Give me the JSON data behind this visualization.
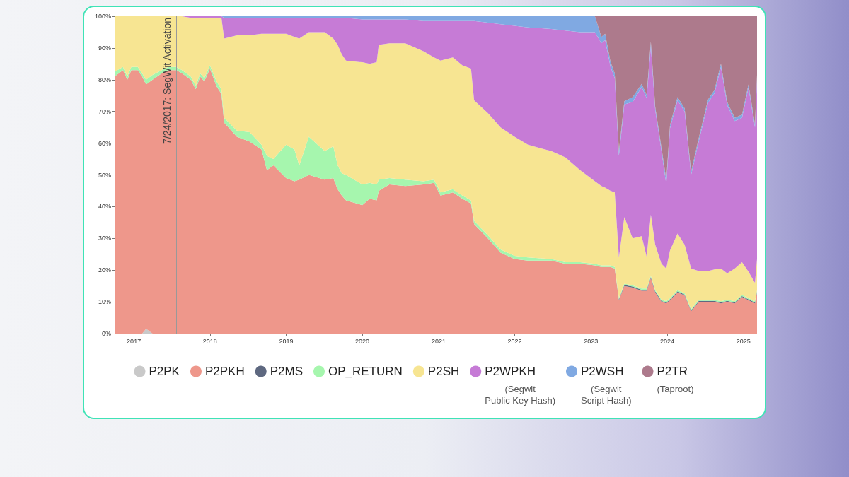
{
  "chart_data": {
    "type": "area",
    "stacked": true,
    "legend": "bottom",
    "marker": "none",
    "x": [
      "2016-10-01",
      "2016-11-10",
      "2016-12-01",
      "2016-12-20",
      "2017-01-20",
      "2017-02-10",
      "2017-03-01",
      "2017-04-01",
      "2017-05-15",
      "2017-06-15",
      "2017-07-24",
      "2017-08-20",
      "2017-10-01",
      "2017-10-25",
      "2017-11-15",
      "2017-12-05",
      "2018-01-01",
      "2018-02-01",
      "2018-02-25",
      "2018-03-10",
      "2018-05-10",
      "2018-07-10",
      "2018-09-05",
      "2018-10-01",
      "2018-11-01",
      "2019-01-01",
      "2019-02-10",
      "2019-03-05",
      "2019-04-20",
      "2019-07-05",
      "2019-08-15",
      "2019-09-05",
      "2019-09-25",
      "2019-10-15",
      "2020-01-01",
      "2020-02-05",
      "2020-03-10",
      "2020-03-20",
      "2020-05-10",
      "2020-07-25",
      "2020-10-20",
      "2020-12-10",
      "2021-01-10",
      "2021-03-10",
      "2021-04-25",
      "2021-06-05",
      "2021-06-20",
      "2021-08-25",
      "2021-10-25",
      "2021-12-31",
      "2022-03-05",
      "2022-06-25",
      "2022-09-01",
      "2022-11-10",
      "2023-01-20",
      "2023-02-20",
      "2023-03-10",
      "2023-04-05",
      "2023-04-25",
      "2023-05-15",
      "2023-06-10",
      "2023-07-20",
      "2023-09-01",
      "2023-09-25",
      "2023-10-15",
      "2023-11-05",
      "2023-12-05",
      "2023-12-28",
      "2024-01-15",
      "2024-02-20",
      "2024-03-25",
      "2024-04-25",
      "2024-06-01",
      "2024-07-15",
      "2024-08-15",
      "2024-09-15",
      "2024-10-15",
      "2024-11-20",
      "2024-12-25",
      "2025-01-25",
      "2025-02-25",
      "2025-03-07"
    ],
    "xlim": [
      "2016-10-01",
      "2025-03-07"
    ],
    "xticks": [
      {
        "value": "2017",
        "label": "2017"
      },
      {
        "value": "2018",
        "label": "2018"
      },
      {
        "value": "2019",
        "label": "2019"
      },
      {
        "value": "2020",
        "label": "2020"
      },
      {
        "value": "2021",
        "label": "2021"
      },
      {
        "value": "2022",
        "label": "2022"
      },
      {
        "value": "2023",
        "label": "2023"
      },
      {
        "value": "2024",
        "label": "2024"
      },
      {
        "value": "2025",
        "label": "2025"
      }
    ],
    "ylim": [
      0,
      100
    ],
    "yticks": [
      {
        "value": 0,
        "label": "0%"
      },
      {
        "value": 10,
        "label": "10%"
      },
      {
        "value": 20,
        "label": "20%"
      },
      {
        "value": 30,
        "label": "30%"
      },
      {
        "value": 40,
        "label": "40%"
      },
      {
        "value": 50,
        "label": "50%"
      },
      {
        "value": 60,
        "label": "60%"
      },
      {
        "value": 70,
        "label": "70%"
      },
      {
        "value": 80,
        "label": "80%"
      },
      {
        "value": 90,
        "label": "90%"
      },
      {
        "value": 100,
        "label": "100%"
      }
    ],
    "ref_lines": [
      {
        "axis": "x",
        "value": "2017-07-24",
        "label": "7/24/2017: SegWit Activation",
        "color": "#999999"
      }
    ],
    "series": [
      {
        "name": "P2PK",
        "color": "#c9c9c9",
        "values": [
          0,
          0,
          0,
          0,
          0,
          0,
          1.5,
          0,
          0,
          0,
          0,
          0,
          0,
          0,
          0,
          0,
          0,
          0,
          0,
          0,
          0,
          0,
          0,
          0,
          0,
          0,
          0,
          0,
          0,
          0,
          0,
          0,
          0,
          0,
          0,
          0,
          0,
          0,
          0,
          0,
          0,
          0,
          0,
          0,
          0,
          0,
          0,
          0,
          0,
          0,
          0,
          0,
          0,
          0,
          0,
          0,
          0,
          0,
          0,
          0,
          0,
          0,
          0,
          0,
          0,
          0,
          0,
          0,
          0,
          0,
          0,
          0,
          0,
          0,
          0,
          0,
          0,
          0,
          0,
          0,
          0,
          0
        ]
      },
      {
        "name": "P2PKH",
        "color": "#ee978b",
        "values": [
          81,
          83,
          80,
          83,
          83,
          81,
          77,
          80,
          82,
          83,
          83,
          82,
          80,
          77,
          81,
          79.5,
          83.5,
          78,
          75.5,
          66.5,
          62,
          60.5,
          58,
          51.5,
          53,
          49,
          48,
          48.5,
          50,
          48.5,
          49,
          45.5,
          43.5,
          42,
          40.5,
          42.5,
          42,
          45,
          47,
          46.5,
          47,
          47.5,
          43.5,
          44.5,
          42.5,
          41,
          34.5,
          30,
          25.5,
          23.5,
          23,
          23,
          22,
          22,
          21.5,
          21,
          21,
          21,
          20.5,
          10.5,
          15,
          14.5,
          13.5,
          13.5,
          17.5,
          13,
          10,
          9.5,
          10.5,
          13,
          12,
          7,
          10,
          10,
          10,
          9.5,
          10,
          9.5,
          11.5,
          10.5,
          9.5,
          13
        ]
      },
      {
        "name": "P2MS",
        "color": "#5e6880",
        "values": [
          0,
          0,
          0,
          0,
          0,
          0,
          0,
          0,
          0,
          0,
          0,
          0,
          0,
          0,
          0,
          0,
          0,
          0,
          0,
          0,
          0,
          0,
          0,
          0,
          0,
          0,
          0,
          0,
          0,
          0,
          0,
          0,
          0,
          0,
          0,
          0,
          0,
          0,
          0,
          0,
          0,
          0,
          0,
          0,
          0,
          0,
          0,
          0,
          0,
          0,
          0,
          0,
          0,
          0,
          0,
          0,
          0,
          0,
          0,
          0.3,
          0.3,
          0.3,
          0.3,
          0.3,
          0.3,
          0.3,
          0.3,
          0.3,
          0.3,
          0.3,
          0.3,
          0.3,
          0.3,
          0.3,
          0.3,
          0.3,
          0.3,
          0.3,
          0.3,
          0.3,
          0.3,
          0.3
        ]
      },
      {
        "name": "OP_RETURN",
        "color": "#a6f6ae",
        "values": [
          1.5,
          1,
          1,
          1,
          1,
          1,
          1.5,
          1.5,
          1,
          1,
          1,
          1,
          1,
          1,
          1,
          1,
          1,
          1.5,
          1.5,
          1.5,
          2,
          3,
          1.5,
          4.5,
          2,
          10.5,
          10,
          4.5,
          12,
          9,
          10,
          7.5,
          7,
          8,
          6.5,
          5,
          5,
          3.5,
          2,
          2,
          1,
          1,
          1,
          1,
          1,
          1,
          1,
          1,
          1,
          1,
          1,
          0.5,
          0.5,
          0.5,
          0.5,
          0.5,
          0.5,
          0.5,
          0.5,
          0.4,
          0.4,
          0.4,
          0.4,
          0.4,
          0.4,
          0.4,
          0.4,
          0.4,
          0.4,
          0.4,
          0.4,
          0.4,
          0.4,
          0.4,
          0.4,
          0.4,
          0.4,
          0.4,
          0.4,
          0.4,
          0.4,
          0.4
        ]
      },
      {
        "name": "P2SH",
        "color": "#f7e592",
        "values": [
          17.5,
          16,
          19,
          16,
          16,
          18,
          20,
          18.5,
          17,
          16,
          16,
          17,
          18.5,
          21.5,
          17.5,
          19,
          15,
          20,
          22.5,
          25,
          30,
          30.5,
          35,
          38.5,
          39.5,
          35,
          35.5,
          40,
          33,
          37.5,
          34,
          38,
          37.5,
          36,
          38.5,
          37.5,
          38.5,
          42.5,
          42.5,
          43,
          41,
          38.5,
          41.5,
          41.5,
          41,
          41.5,
          38,
          38.5,
          38.5,
          37.5,
          35.5,
          34,
          33,
          29,
          26,
          25,
          24.5,
          23.5,
          23.5,
          12.8,
          21,
          14.8,
          16.5,
          10,
          19.3,
          14.3,
          11.3,
          10.3,
          15,
          17.8,
          15.3,
          12.8,
          9,
          9,
          9.5,
          10.3,
          8.3,
          10.3,
          10.3,
          8.3,
          5.8,
          9.8
        ]
      },
      {
        "name": "P2WPKH\n(Segwit\nPublic Key Hash)",
        "color": "#c67bd6",
        "values": [
          0,
          0,
          0,
          0,
          0,
          0,
          0,
          0,
          0,
          0,
          0,
          0,
          0.5,
          0.5,
          0.5,
          0.5,
          0.5,
          0.5,
          0.5,
          6.5,
          5.5,
          5.5,
          5,
          5,
          5,
          5,
          6,
          6.5,
          4.5,
          4.5,
          6.5,
          8.5,
          11.5,
          13.5,
          13.5,
          14,
          13.5,
          8,
          7.5,
          7.5,
          9.5,
          11.5,
          12.5,
          11.5,
          14,
          15,
          25,
          28.5,
          32.5,
          35,
          37,
          38.5,
          40,
          43.5,
          47,
          45,
          46.5,
          39,
          36,
          32,
          35.5,
          43,
          47,
          50,
          53,
          42.5,
          35.5,
          26.5,
          38.5,
          42,
          42,
          29.5,
          41,
          53,
          55.5,
          63.5,
          53,
          46.5,
          45.5,
          58,
          49,
          57
        ]
      },
      {
        "name": "P2WSH\n(Segwit\nScript Hash)",
        "color": "#80a9e2",
        "values": [
          0,
          0,
          0,
          0,
          0,
          0,
          0,
          0,
          0,
          0,
          0,
          0,
          0,
          0,
          0,
          0,
          0,
          0,
          0,
          0.5,
          0.5,
          0.5,
          0.5,
          0.5,
          0.5,
          0.5,
          0.5,
          0.5,
          0.5,
          0.5,
          0.5,
          0.5,
          0.5,
          0.5,
          1,
          1,
          1,
          1,
          1,
          1,
          1.5,
          1.5,
          1.5,
          1.5,
          1.5,
          1.5,
          1.5,
          2,
          2.5,
          3,
          3.5,
          4,
          4.5,
          5,
          5,
          2,
          2,
          1.5,
          1.5,
          1.5,
          1,
          1.5,
          1,
          1,
          1.5,
          1,
          1,
          1.5,
          1,
          1,
          1,
          1,
          1,
          1,
          1,
          1,
          1,
          1,
          1,
          1,
          1,
          1
        ]
      },
      {
        "name": "P2TR\n(Taproot)",
        "color": "#ad7a8c",
        "values": [
          0,
          0,
          0,
          0,
          0,
          0,
          0,
          0,
          0,
          0,
          0,
          0,
          0,
          0,
          0,
          0,
          0,
          0,
          0,
          0,
          0,
          0,
          0,
          0,
          0,
          0,
          0,
          0,
          0,
          0,
          0,
          0,
          0,
          0,
          0,
          0,
          0,
          0,
          0,
          0,
          0,
          0,
          0,
          0,
          0,
          0,
          0,
          0,
          0,
          0,
          0,
          0,
          0,
          0,
          0,
          6.5,
          5.5,
          14.5,
          18,
          42.5,
          26.8,
          25.5,
          21.3,
          24.8,
          8,
          28.5,
          41.5,
          51.5,
          34.3,
          25.5,
          29,
          49,
          38.3,
          26.3,
          23.3,
          15,
          27,
          32,
          31,
          21.5,
          34,
          18.5
        ]
      }
    ]
  }
}
